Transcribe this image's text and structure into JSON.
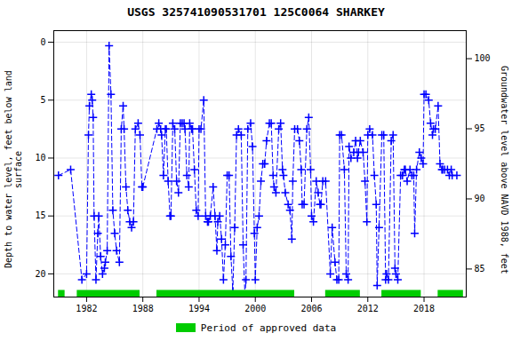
{
  "chart_data": {
    "type": "line",
    "title": "USGS 325741090531701 125C0064 SHARKEY",
    "ylabel": "Depth to water level, feet below land\nsurface",
    "y2label": "Groundwater level above NAVD 1988, feet",
    "xlim": [
      1978.5,
      2022.5
    ],
    "xticks": [
      1982,
      1988,
      1994,
      2000,
      2006,
      2012,
      2018
    ],
    "ylim": [
      22,
      -1
    ],
    "yticks": [
      0,
      5,
      10,
      15,
      20
    ],
    "y2lim": [
      83,
      102
    ],
    "y2ticks": [
      85,
      90,
      95,
      100
    ],
    "grid": true,
    "legend": "bottom",
    "x": [
      1979.0,
      1980.3,
      1981.5,
      1982.0,
      1982.2,
      1982.3,
      1982.5,
      1982.6,
      1982.7,
      1982.8,
      1983.0,
      1983.2,
      1983.3,
      1983.5,
      1983.7,
      1983.9,
      1984.0,
      1984.2,
      1984.4,
      1984.6,
      1984.8,
      1985.0,
      1985.2,
      1985.5,
      1985.7,
      1985.9,
      1986.0,
      1986.2,
      1986.4,
      1986.6,
      1986.8,
      1987.0,
      1987.2,
      1987.5,
      1987.7,
      1987.9,
      1988.0,
      1989.5,
      1989.7,
      1989.9,
      1990.0,
      1990.2,
      1990.4,
      1990.5,
      1990.7,
      1990.9,
      1991.0,
      1991.2,
      1991.4,
      1991.6,
      1991.8,
      1992.0,
      1992.2,
      1992.4,
      1992.5,
      1992.7,
      1992.9,
      1993.0,
      1993.2,
      1993.3,
      1993.5,
      1993.7,
      1993.9,
      1994.0,
      1994.2,
      1994.5,
      1994.7,
      1994.9,
      1995.0,
      1995.2,
      1995.5,
      1995.7,
      1995.9,
      1996.0,
      1996.2,
      1996.4,
      1996.6,
      1996.8,
      1997.0,
      1997.2,
      1997.4,
      1997.6,
      1997.8,
      1998.0,
      1998.2,
      1998.5,
      1998.7,
      1998.9,
      1999.0,
      1999.2,
      1999.5,
      1999.7,
      1999.9,
      2000.0,
      2000.2,
      2000.4,
      2000.6,
      2000.8,
      2001.0,
      2001.2,
      2001.5,
      2001.7,
      2001.9,
      2002.0,
      2002.2,
      2002.5,
      2002.7,
      2002.9,
      2003.0,
      2003.2,
      2003.5,
      2003.7,
      2003.9,
      2004.0,
      2004.2,
      2004.5,
      2004.7,
      2004.9,
      2005.0,
      2005.2,
      2005.5,
      2005.7,
      2005.9,
      2006.0,
      2006.2,
      2006.5,
      2006.7,
      2006.9,
      2007.0,
      2007.2,
      2007.5,
      2008.0,
      2008.2,
      2008.5,
      2008.7,
      2008.9,
      2009.0,
      2009.2,
      2009.5,
      2009.7,
      2009.9,
      2010.0,
      2010.2,
      2010.5,
      2010.7,
      2010.9,
      2011.0,
      2011.2,
      2011.5,
      2011.7,
      2011.9,
      2012.0,
      2012.2,
      2012.5,
      2012.7,
      2012.9,
      2013.0,
      2013.2,
      2013.5,
      2013.7,
      2013.9,
      2014.0,
      2014.2,
      2014.5,
      2014.7,
      2014.9,
      2015.0,
      2015.2,
      2015.5,
      2015.7,
      2015.9,
      2016.0,
      2016.2,
      2016.5,
      2016.7,
      2016.9,
      2017.0,
      2017.2,
      2017.5,
      2017.7,
      2017.9,
      2018.0,
      2018.2,
      2018.5,
      2018.7,
      2018.9,
      2019.0,
      2019.2,
      2019.5,
      2019.7,
      2019.9,
      2020.0,
      2020.2,
      2020.5,
      2020.7,
      2020.9,
      2021.0,
      2021.5
    ],
    "series": [
      {
        "color": "#0000ff",
        "line_style": "dashed",
        "marker": "plus",
        "values": [
          11.5,
          11.0,
          20.5,
          20.0,
          8.0,
          5.5,
          4.5,
          5.0,
          6.5,
          15.0,
          20.5,
          16.5,
          15.0,
          18.5,
          20.0,
          19.5,
          19.0,
          18.0,
          0.3,
          4.5,
          14.5,
          16.5,
          18.0,
          19.0,
          7.5,
          5.5,
          7.5,
          12.5,
          14.5,
          15.5,
          16.0,
          15.5,
          7.5,
          7.0,
          8.0,
          12.5,
          12.5,
          7.5,
          7.0,
          7.5,
          8.0,
          11.5,
          7.5,
          7.5,
          12.0,
          15.0,
          15.0,
          7.0,
          7.5,
          12.0,
          13.0,
          7.0,
          7.0,
          7.0,
          7.5,
          11.5,
          12.5,
          7.0,
          7.5,
          7.5,
          11.0,
          14.5,
          15.0,
          7.5,
          7.5,
          5.0,
          15.0,
          15.5,
          15.5,
          15.0,
          12.5,
          15.0,
          18.0,
          15.5,
          15.0,
          17.0,
          20.5,
          17.5,
          11.5,
          11.5,
          18.5,
          21.5,
          16.0,
          8.0,
          7.5,
          8.0,
          17.5,
          22.0,
          20.5,
          7.5,
          7.0,
          9.0,
          16.5,
          20.5,
          16.0,
          15.0,
          12.0,
          10.5,
          10.5,
          8.5,
          7.0,
          7.0,
          11.5,
          12.5,
          13.0,
          7.5,
          7.0,
          11.0,
          11.5,
          13.0,
          14.0,
          14.5,
          17.0,
          12.0,
          7.5,
          7.5,
          8.5,
          11.0,
          14.0,
          14.0,
          7.5,
          6.5,
          11.0,
          15.0,
          15.5,
          12.0,
          13.0,
          14.0,
          14.0,
          12.0,
          12.0,
          20.0,
          16.0,
          19.0,
          20.5,
          20.5,
          8.0,
          8.0,
          11.0,
          20.0,
          20.5,
          9.0,
          10.0,
          9.5,
          8.5,
          10.0,
          9.5,
          8.5,
          9.5,
          12.0,
          15.5,
          8.0,
          7.5,
          8.0,
          11.5,
          14.0,
          21.0,
          16.0,
          8.0,
          8.0,
          20.5,
          20.0,
          20.5,
          8.5,
          8.0,
          19.5,
          20.0,
          20.5,
          11.5,
          11.5,
          11.0,
          11.0,
          12.0,
          11.0,
          11.5,
          11.5,
          16.5,
          11.0,
          9.5,
          10.0,
          10.5,
          4.5,
          4.5,
          5.0,
          7.0,
          8.0,
          7.5,
          7.5,
          5.5,
          10.5,
          11.0,
          11.0,
          11.0,
          11.0,
          11.5,
          11.0,
          11.5,
          11.5
        ]
      }
    ],
    "approved_segments": {
      "name": "Period of approved data",
      "color": "#00cc00",
      "ranges": [
        [
          1979.0,
          1979.7
        ],
        [
          1981.0,
          1987.7
        ],
        [
          1989.5,
          2004.2
        ],
        [
          2007.5,
          2011.2
        ],
        [
          2013.5,
          2017.7
        ],
        [
          2019.5,
          2022.2
        ]
      ]
    }
  }
}
